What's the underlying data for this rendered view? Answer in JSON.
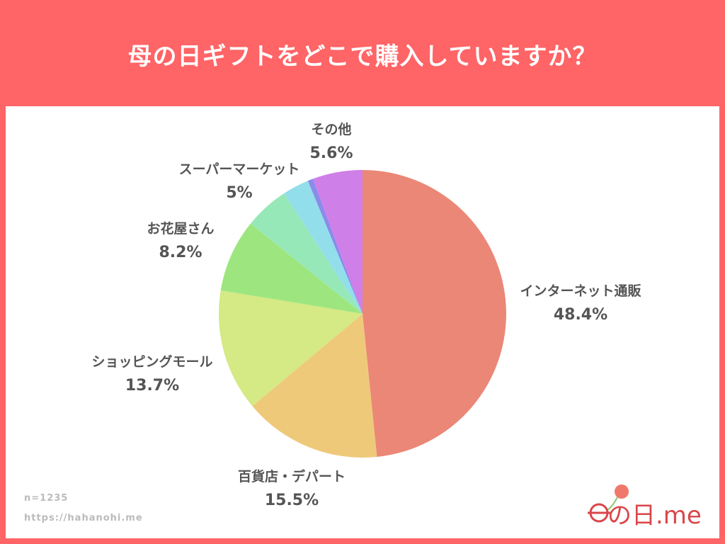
{
  "header": {
    "title": "母の日ギフトをどこで購入していますか？"
  },
  "chart_data": {
    "type": "pie",
    "start": "top",
    "direction": "clockwise",
    "slices": [
      {
        "label": "インターネット通販",
        "value": 48.4,
        "display": "48.4%",
        "color": "#EB8777"
      },
      {
        "label": "百貨店・デパート",
        "value": 15.5,
        "display": "15.5%",
        "color": "#EFC97A"
      },
      {
        "label": "ショッピングモール",
        "value": 13.7,
        "display": "13.7%",
        "color": "#D5E985"
      },
      {
        "label": "お花屋さん",
        "value": 8.2,
        "display": "8.2%",
        "color": "#9DE67F"
      },
      {
        "label": "スーパーマーケット",
        "value": 5,
        "display": "5%",
        "color": "#97E8B8"
      },
      {
        "label": "",
        "value": 3.0,
        "display": "",
        "color": "#92DEEB"
      },
      {
        "label": "",
        "value": 0.6,
        "display": "",
        "color": "#8A8BEA"
      },
      {
        "label": "その他",
        "value": 5.6,
        "display": "5.6%",
        "color": "#CF7FE8"
      }
    ]
  },
  "footer": {
    "n": "n=1235",
    "url": "https://hahanohi.me"
  },
  "logo": {
    "text": "母の日.me"
  }
}
